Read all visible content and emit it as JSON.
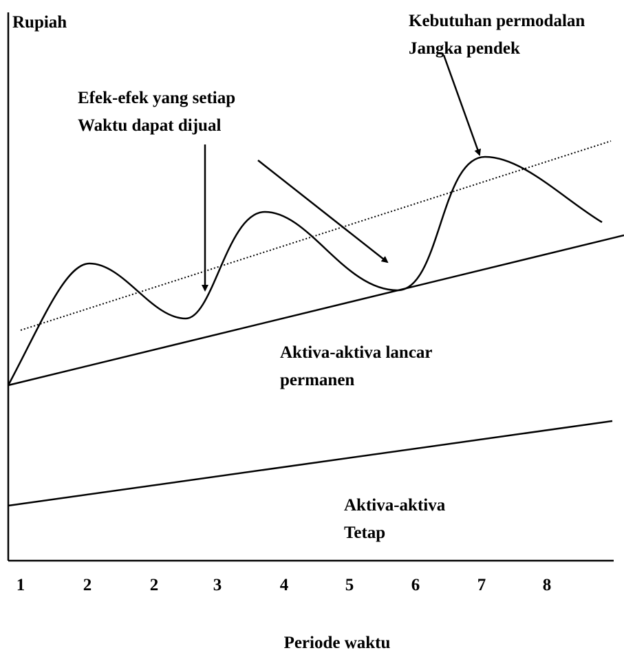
{
  "y_axis_label": "Rupiah",
  "x_axis_label": "Periode waktu",
  "x_labels": [
    "1",
    "2",
    "2",
    "3",
    "4",
    "5",
    "6",
    "7",
    "8"
  ],
  "annotations": {
    "short_term": [
      "Kebutuhan permodalan",
      "Jangka pendek"
    ],
    "securities": [
      "Efek-efek yang setiap",
      "Waktu dapat dijual"
    ]
  },
  "regions": {
    "permanent_current": [
      "Aktiva-aktiva lancar",
      "permanen"
    ],
    "fixed": [
      "Aktiva-aktiva",
      "Tetap"
    ]
  }
}
